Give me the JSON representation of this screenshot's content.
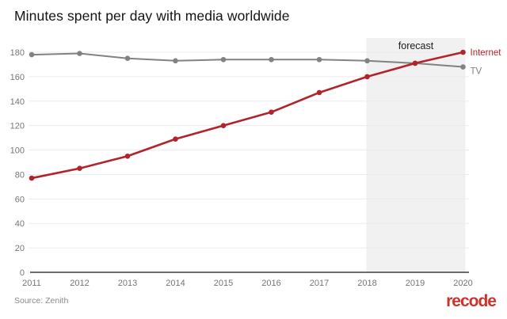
{
  "title": "Minutes spent per day with media worldwide",
  "source": "Source: Zenith",
  "brand": "recode",
  "colors": {
    "internet": "#b2242c",
    "tv": "#828282",
    "grid": "#ebebeb",
    "axis": "#3d3d3d",
    "tick_text": "#757575",
    "forecast_band": "#f1f1f1",
    "forecast_text": "#1c1c1c",
    "title_text": "#141414",
    "brand_red": "#ca342d"
  },
  "chart_data": {
    "type": "line",
    "title": "Minutes spent per day with media worldwide",
    "x": [
      2011,
      2012,
      2013,
      2014,
      2015,
      2016,
      2017,
      2018,
      2019,
      2020
    ],
    "series": [
      {
        "name": "Internet",
        "values": [
          77,
          85,
          95,
          109,
          120,
          131,
          147,
          160,
          171,
          180
        ],
        "color": "#b2242c",
        "line_width": 2.6,
        "label_dy": 4
      },
      {
        "name": "TV",
        "values": [
          178,
          179,
          175,
          173,
          174,
          174,
          174,
          173,
          171,
          168
        ],
        "color": "#828282",
        "line_width": 2,
        "label_dy": 9
      }
    ],
    "xlabel": "",
    "ylabel": "",
    "ylim": [
      0,
      180
    ],
    "ytick_step": 20,
    "yticks": [
      0,
      20,
      40,
      60,
      80,
      100,
      120,
      140,
      160,
      180
    ],
    "grid": true,
    "legend_position": "right-of-line-ends",
    "forecast_region": {
      "from": 2018,
      "to": 2020,
      "label": "forecast"
    }
  }
}
